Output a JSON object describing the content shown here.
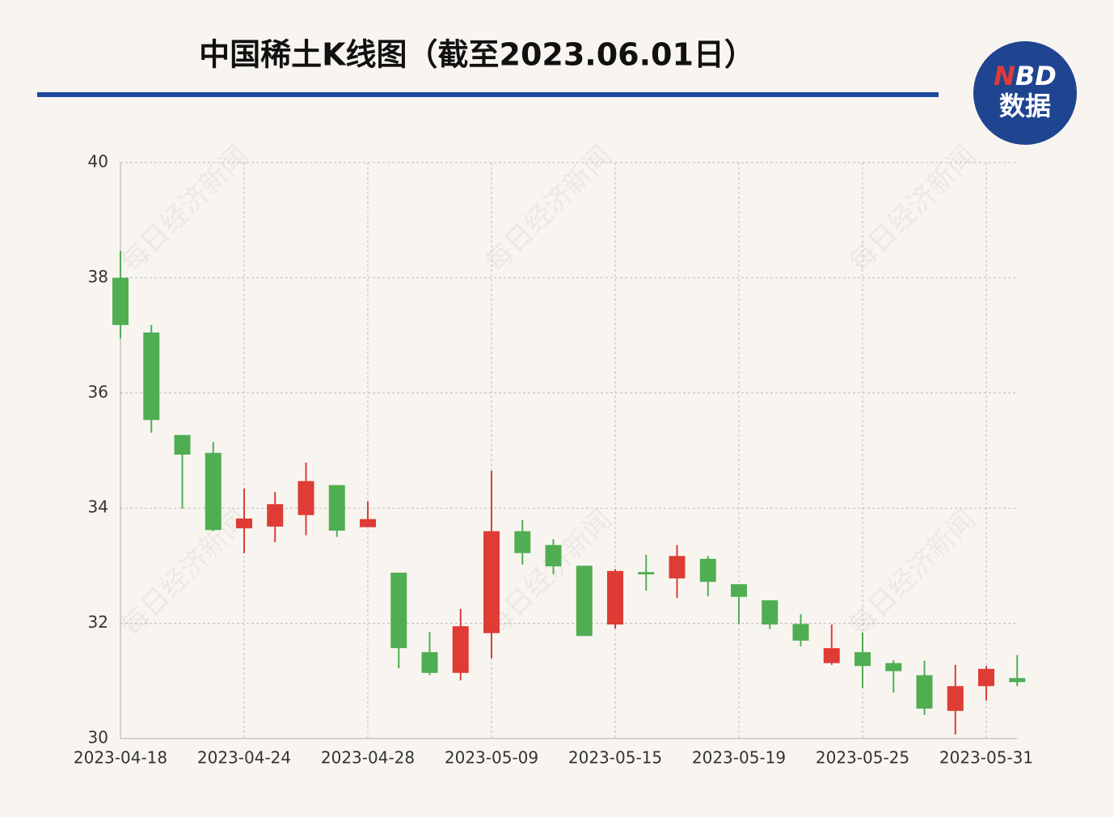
{
  "chart_data": {
    "type": "candlestick",
    "title": "中国稀土K线图（截至2023.06.01日）",
    "logo": {
      "top_first": "N",
      "top_rest": "BD",
      "bottom": "数据"
    },
    "watermark": "每日经济新闻",
    "categories": [
      "2023-04-18",
      null,
      null,
      null,
      "2023-04-24",
      null,
      null,
      null,
      "2023-04-28",
      null,
      null,
      null,
      "2023-05-09",
      null,
      null,
      null,
      "2023-05-15",
      null,
      null,
      null,
      "2023-05-19",
      null,
      null,
      null,
      "2023-05-25",
      null,
      null,
      null,
      "2023-05-31",
      null
    ],
    "open": [
      38.0,
      37.05,
      35.27,
      34.96,
      33.65,
      33.68,
      33.88,
      34.4,
      33.67,
      32.88,
      31.5,
      31.14,
      31.83,
      33.6,
      33.36,
      33.0,
      31.98,
      32.89,
      32.78,
      33.12,
      32.68,
      32.4,
      31.99,
      31.31,
      31.5,
      31.31,
      31.1,
      30.48,
      30.91,
      31.05
    ],
    "high": [
      38.47,
      37.18,
      35.27,
      35.15,
      34.34,
      34.28,
      34.79,
      34.4,
      34.12,
      32.88,
      31.85,
      32.25,
      34.65,
      33.79,
      33.46,
      33.0,
      32.94,
      33.19,
      33.36,
      33.17,
      32.68,
      32.4,
      32.16,
      31.98,
      31.84,
      31.36,
      31.35,
      31.28,
      31.26,
      31.45
    ],
    "low": [
      36.95,
      35.31,
      33.99,
      33.6,
      33.22,
      33.41,
      33.53,
      33.5,
      33.67,
      31.22,
      31.1,
      31.01,
      31.39,
      33.02,
      32.85,
      31.78,
      31.91,
      32.57,
      32.44,
      32.47,
      31.99,
      31.9,
      31.6,
      31.28,
      30.88,
      30.8,
      30.41,
      30.07,
      30.66,
      30.91
    ],
    "close": [
      37.18,
      35.53,
      34.93,
      33.62,
      33.82,
      34.07,
      34.47,
      33.61,
      33.81,
      31.57,
      31.14,
      31.95,
      33.6,
      33.22,
      32.99,
      31.78,
      32.91,
      32.85,
      33.17,
      32.72,
      32.46,
      31.98,
      31.7,
      31.57,
      31.26,
      31.17,
      30.52,
      30.91,
      31.21,
      30.98
    ],
    "up_color": "#de3c35",
    "down_color": "#4fae52",
    "ylim": [
      30,
      40
    ],
    "yticks": [
      30,
      32,
      34,
      36,
      38,
      40
    ],
    "grid": true
  }
}
